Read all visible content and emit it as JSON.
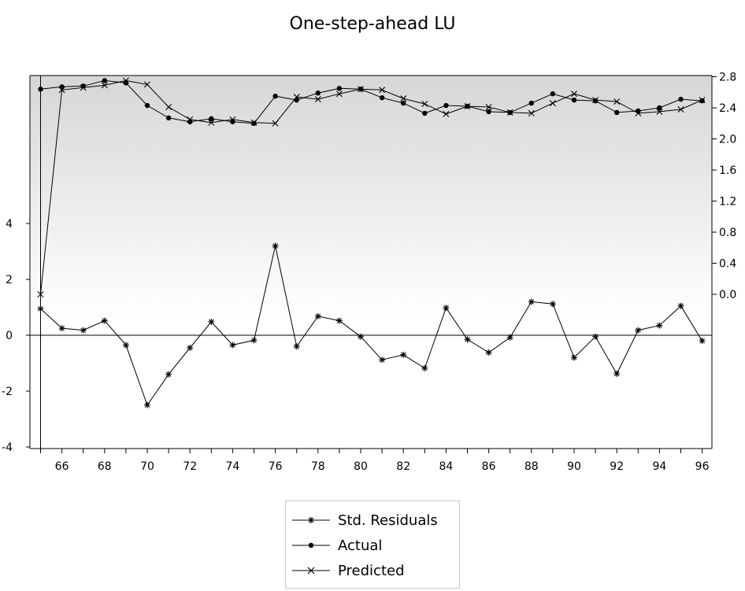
{
  "chart_data": {
    "type": "line",
    "title": "One-step-ahead LU",
    "x": [
      65,
      66,
      67,
      68,
      69,
      70,
      71,
      72,
      73,
      74,
      75,
      76,
      77,
      78,
      79,
      80,
      81,
      82,
      83,
      84,
      85,
      86,
      87,
      88,
      89,
      90,
      91,
      92,
      93,
      94,
      95,
      96
    ],
    "x_tick_labels": [
      "66",
      "68",
      "70",
      "72",
      "74",
      "76",
      "78",
      "80",
      "82",
      "84",
      "86",
      "88",
      "90",
      "92",
      "94",
      "96"
    ],
    "left_axis": {
      "ylim": [
        -4,
        5.9
      ],
      "ticks": [
        "4",
        "2",
        "0",
        "-2",
        "-4"
      ]
    },
    "right_axis": {
      "ylim": [
        -2.0,
        2.85
      ],
      "ticks": [
        "2.8",
        "2.4",
        "2.0",
        "1.6",
        "1.2",
        "0.8",
        "0.4",
        "0.0"
      ]
    },
    "zero_line": true,
    "background": "gradient-top-gray",
    "series": [
      {
        "name": "Std. Residuals",
        "axis": "left",
        "marker": "asterisk",
        "values": [
          0.95,
          0.25,
          0.18,
          0.52,
          -0.35,
          -2.5,
          -1.4,
          -0.45,
          0.48,
          -0.35,
          -0.18,
          3.2,
          -0.4,
          0.68,
          0.52,
          -0.05,
          -0.88,
          -0.7,
          -1.18,
          0.98,
          -0.15,
          -0.62,
          -0.08,
          1.2,
          1.12,
          -0.8,
          -0.05,
          -1.38,
          0.18,
          0.35,
          1.05,
          -0.2
        ]
      },
      {
        "name": "Actual",
        "axis": "right",
        "marker": "dot",
        "values": [
          2.64,
          2.67,
          2.68,
          2.75,
          2.72,
          2.43,
          2.27,
          2.22,
          2.26,
          2.22,
          2.2,
          2.55,
          2.5,
          2.59,
          2.65,
          2.64,
          2.53,
          2.46,
          2.33,
          2.43,
          2.42,
          2.35,
          2.34,
          2.46,
          2.58,
          2.5,
          2.49,
          2.34,
          2.36,
          2.4,
          2.51,
          2.49
        ]
      },
      {
        "name": "Predicted",
        "axis": "right",
        "marker": "x",
        "values": [
          0.0,
          2.63,
          2.66,
          2.69,
          2.75,
          2.7,
          2.41,
          2.25,
          2.21,
          2.25,
          2.21,
          2.2,
          2.54,
          2.51,
          2.58,
          2.64,
          2.63,
          2.52,
          2.45,
          2.32,
          2.42,
          2.41,
          2.34,
          2.33,
          2.46,
          2.58,
          2.5,
          2.48,
          2.33,
          2.35,
          2.38,
          2.5
        ]
      }
    ]
  },
  "legend": {
    "items": [
      "Std. Residuals",
      "Actual",
      "Predicted"
    ]
  }
}
